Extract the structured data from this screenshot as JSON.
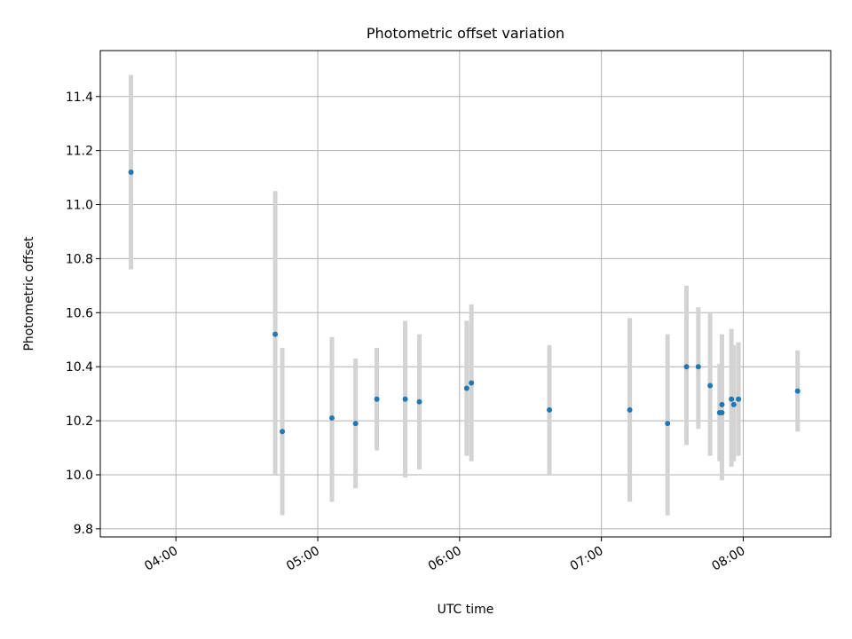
{
  "chart_data": {
    "type": "scatter",
    "title": "Photometric offset variation",
    "xlabel": "UTC time",
    "ylabel": "Photometric offset",
    "x_ticks": [
      "04:00",
      "05:00",
      "06:00",
      "07:00",
      "08:00"
    ],
    "y_ticks": [
      "9.8",
      "10.0",
      "10.2",
      "10.4",
      "10.6",
      "10.8",
      "11.0",
      "11.2",
      "11.4"
    ],
    "xlim": [
      "03:28",
      "08:37"
    ],
    "ylim": [
      9.77,
      11.57
    ],
    "grid": true,
    "colors": {
      "point": "#1f77b4",
      "errorbar": "#d3d3d3",
      "grid": "#b0b0b0"
    },
    "points": [
      {
        "t": "03:41",
        "y": 11.12,
        "lo": 10.76,
        "hi": 11.48
      },
      {
        "t": "04:42",
        "y": 10.52,
        "lo": 10.0,
        "hi": 11.05
      },
      {
        "t": "04:45",
        "y": 10.16,
        "lo": 9.85,
        "hi": 10.47
      },
      {
        "t": "05:06",
        "y": 10.21,
        "lo": 9.9,
        "hi": 10.51
      },
      {
        "t": "05:16",
        "y": 10.19,
        "lo": 9.95,
        "hi": 10.43
      },
      {
        "t": "05:25",
        "y": 10.28,
        "lo": 10.09,
        "hi": 10.47
      },
      {
        "t": "05:37",
        "y": 10.28,
        "lo": 9.99,
        "hi": 10.57
      },
      {
        "t": "05:43",
        "y": 10.27,
        "lo": 10.02,
        "hi": 10.52
      },
      {
        "t": "06:03",
        "y": 10.32,
        "lo": 10.07,
        "hi": 10.57
      },
      {
        "t": "06:05",
        "y": 10.34,
        "lo": 10.05,
        "hi": 10.63
      },
      {
        "t": "06:38",
        "y": 10.24,
        "lo": 10.0,
        "hi": 10.48
      },
      {
        "t": "07:12",
        "y": 10.24,
        "lo": 9.9,
        "hi": 10.58
      },
      {
        "t": "07:28",
        "y": 10.19,
        "lo": 9.85,
        "hi": 10.52
      },
      {
        "t": "07:36",
        "y": 10.4,
        "lo": 10.11,
        "hi": 10.7
      },
      {
        "t": "07:41",
        "y": 10.4,
        "lo": 10.17,
        "hi": 10.62
      },
      {
        "t": "07:46",
        "y": 10.33,
        "lo": 10.07,
        "hi": 10.6
      },
      {
        "t": "07:50",
        "y": 10.23,
        "lo": 10.05,
        "hi": 10.41
      },
      {
        "t": "07:51",
        "y": 10.26,
        "lo": 10.04,
        "hi": 10.52
      },
      {
        "t": "07:51",
        "y": 10.23,
        "lo": 9.98,
        "hi": 10.49
      },
      {
        "t": "07:55",
        "y": 10.28,
        "lo": 10.03,
        "hi": 10.54
      },
      {
        "t": "07:56",
        "y": 10.26,
        "lo": 10.05,
        "hi": 10.48
      },
      {
        "t": "07:58",
        "y": 10.28,
        "lo": 10.07,
        "hi": 10.49
      },
      {
        "t": "08:23",
        "y": 10.31,
        "lo": 10.16,
        "hi": 10.46
      }
    ]
  }
}
